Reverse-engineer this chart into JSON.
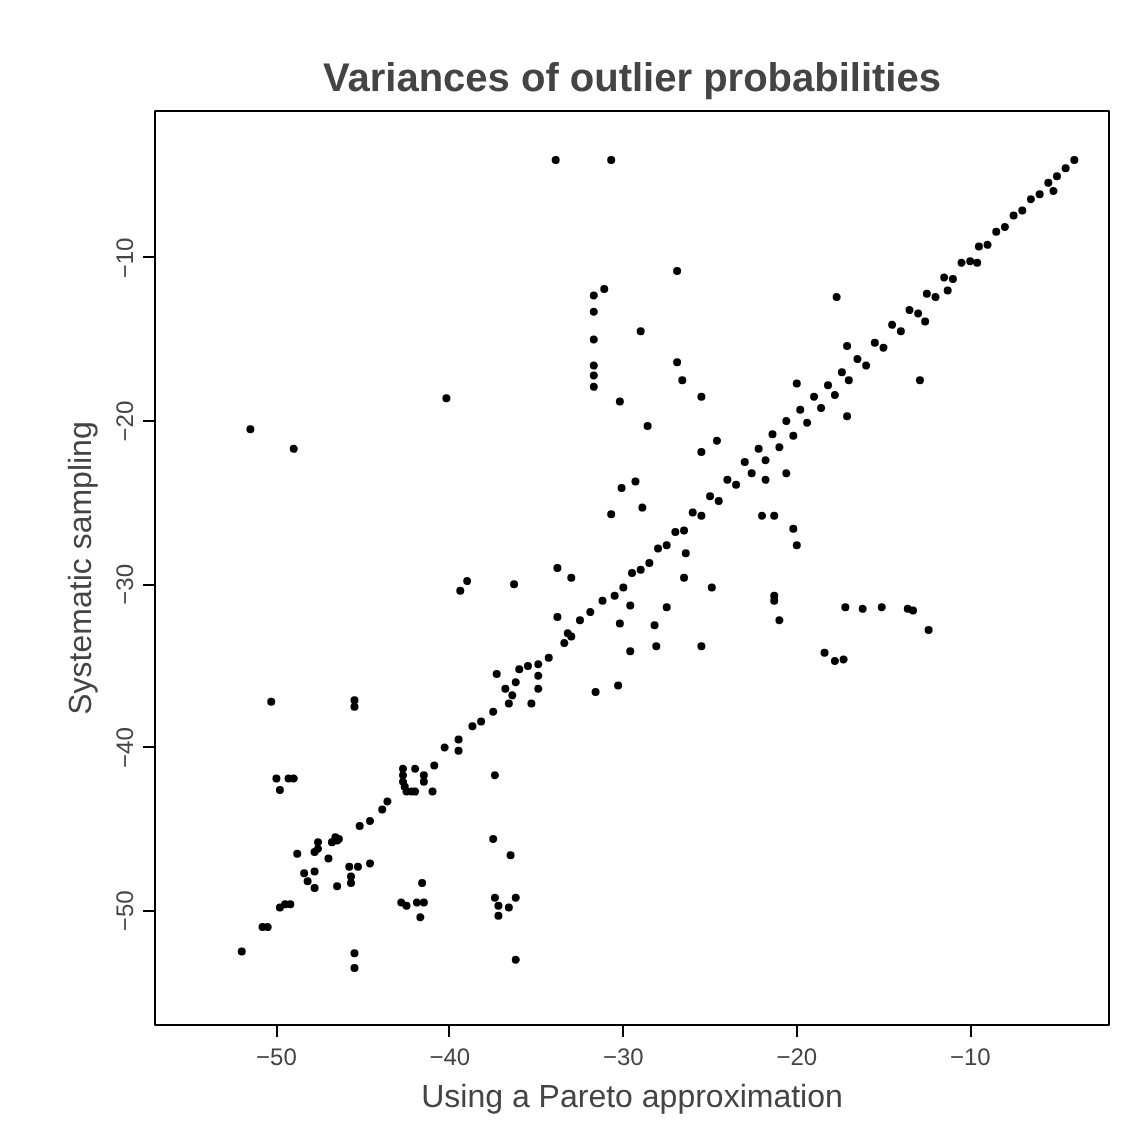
{
  "chart_data": {
    "type": "scatter",
    "title": "Variances of outlier probabilities",
    "xlabel": "Using a Pareto approximation",
    "ylabel": "Systematic sampling",
    "xlim": [
      -57,
      -2
    ],
    "ylim": [
      -57,
      -1
    ],
    "xticks": [
      -50,
      -40,
      -30,
      -20,
      -10
    ],
    "yticks": [
      -50,
      -40,
      -30,
      -20,
      -10
    ],
    "grid": false,
    "marker": "circle",
    "series": [
      {
        "color": "#000000",
        "x": [
          -33.9,
          -30.7,
          -51.5,
          -49.0,
          -40.2,
          -31.7,
          -31.7,
          -31.7,
          -31.7,
          -31.7,
          -31.7,
          -31.1,
          -30.7,
          -33.8,
          -33.0,
          -39.0,
          -36.3,
          -39.4,
          -26.9,
          -17.7,
          -29.0,
          -26.9,
          -26.6,
          -25.5,
          -30.2,
          -28.6,
          -12.9,
          -17.1,
          -30.1,
          -29.3,
          -28.9,
          -22.0,
          -21.3,
          -20.2,
          -20.0,
          -26.5,
          -24.9,
          -21.3,
          -26.4,
          -20.6,
          -21.8,
          -20.0,
          -17.1,
          -24.6,
          -25.5,
          -12.6,
          -5.2,
          -9.6,
          -11.3,
          -29.6,
          -27.5,
          -30.2,
          -28.2,
          -29.6,
          -28.1,
          -25.5,
          -30.3,
          -21.0,
          -21.3,
          -17.2,
          -16.2,
          -15.1,
          -13.6,
          -13.3,
          -12.4,
          -18.4,
          -17.8,
          -17.3,
          -50.3,
          -45.5,
          -45.5,
          -50.0,
          -49.8,
          -49.3,
          -49.0,
          -37.4,
          -37.5,
          -36.5,
          -37.4,
          -37.2,
          -37.2,
          -36.6,
          -36.2,
          -36.2,
          -45.5,
          -45.5,
          -42.8,
          -42.5,
          -41.9,
          -41.5,
          -41.7,
          -41.6,
          -31.6,
          -39.5,
          -48.4,
          -48.2,
          -47.8,
          -47.8,
          -46.5,
          -45.7,
          -45.7,
          -45.3,
          -44.6,
          -45.8,
          -52.0,
          -50.8,
          -50.5,
          -49.8,
          -49.5,
          -49.2,
          -48.8,
          -47.8,
          -47.6,
          -47.6,
          -46.8,
          -46.6,
          -46.5,
          -46.4,
          -45.2,
          -43.6,
          -42.6,
          -40.9,
          -39.5,
          -38.7,
          -37.5,
          -36.4,
          -34.9,
          -33.4,
          -31.9,
          -42.7,
          -42.7,
          -42.7,
          -42.5,
          -42.0,
          -42.0,
          -41.5,
          -41.5,
          -41.0,
          -42.2,
          -37.3,
          -36.8,
          -36.2,
          -36.0,
          -35.5,
          -34.9,
          -34.9,
          -36.6,
          -35.3,
          -33.8,
          -33.2,
          -47.0,
          -44.6,
          -43.9,
          -40.3,
          -38.2,
          -34.3,
          -33.0,
          -32.5,
          -31.2,
          -30.5,
          -30.0,
          -29.5,
          -29.0,
          -28.5,
          -28.0,
          -27.5,
          -27.0,
          -26.5,
          -26.0,
          -25.5,
          -25.0,
          -24.5,
          -24.0,
          -23.5,
          -23.0,
          -22.6,
          -22.2,
          -21.8,
          -21.4,
          -21.0,
          -20.6,
          -20.2,
          -19.8,
          -19.4,
          -19.0,
          -18.6,
          -18.2,
          -17.8,
          -17.4,
          -17.0,
          -16.5,
          -16.0,
          -15.5,
          -15.0,
          -14.5,
          -14.0,
          -13.5,
          -13.0,
          -12.5,
          -12.0,
          -11.5,
          -11.0,
          -10.5,
          -10.0,
          -9.5,
          -9.0,
          -8.5,
          -8.0,
          -7.5,
          -7.0,
          -6.5,
          -6.0,
          -5.5,
          -5.0,
          -4.5,
          -4.0
        ],
        "values": [
          -4.0,
          -4.0,
          -20.5,
          -21.7,
          -18.6,
          -12.3,
          -13.3,
          -15.0,
          -16.6,
          -17.2,
          -17.9,
          -11.9,
          -25.7,
          -29.0,
          -29.6,
          -29.8,
          -30.0,
          -30.4,
          -10.8,
          -12.4,
          -14.5,
          -16.4,
          -17.5,
          -18.5,
          -18.8,
          -20.3,
          -17.5,
          -19.7,
          -24.1,
          -23.7,
          -25.3,
          -25.8,
          -25.8,
          -26.6,
          -27.6,
          -29.6,
          -30.2,
          -30.7,
          -28.1,
          -23.2,
          -23.6,
          -17.7,
          -15.4,
          -21.2,
          -21.9,
          -13.9,
          -5.9,
          -10.3,
          -12.0,
          -31.3,
          -31.4,
          -32.4,
          -32.5,
          -34.1,
          -33.8,
          -33.8,
          -36.2,
          -32.2,
          -31.0,
          -31.4,
          -31.5,
          -31.4,
          -31.5,
          -31.6,
          -32.8,
          -34.2,
          -34.7,
          -34.6,
          -37.2,
          -37.1,
          -37.5,
          -41.9,
          -42.6,
          -41.9,
          -41.9,
          -41.7,
          -45.6,
          -46.6,
          -49.2,
          -49.7,
          -50.3,
          -49.8,
          -49.2,
          -53.0,
          -52.6,
          -53.5,
          -49.5,
          -49.7,
          -49.5,
          -49.5,
          -50.4,
          -48.3,
          -36.6,
          -40.2,
          -47.7,
          -48.2,
          -48.6,
          -47.6,
          -48.5,
          -47.9,
          -48.3,
          -47.3,
          -47.1,
          -47.3,
          -52.5,
          -51.0,
          -51.0,
          -49.8,
          -49.6,
          -49.6,
          -46.5,
          -46.4,
          -45.8,
          -46.2,
          -45.8,
          -45.5,
          -45.7,
          -45.6,
          -44.8,
          -43.3,
          -42.4,
          -41.1,
          -39.5,
          -38.7,
          -37.8,
          -36.8,
          -34.9,
          -33.6,
          -31.7,
          -41.3,
          -41.7,
          -42.1,
          -42.7,
          -41.3,
          -42.7,
          -41.7,
          -42.1,
          -42.7,
          -42.7,
          -35.5,
          -36.4,
          -36.0,
          -35.2,
          -35.0,
          -35.6,
          -36.4,
          -37.3,
          -37.3,
          -32.0,
          -33.0,
          -46.8,
          -44.5,
          -43.8,
          -40.0,
          -38.4,
          -34.5,
          -33.2,
          -32.2,
          -31.0,
          -30.7,
          -30.2,
          -29.3,
          -29.1,
          -28.7,
          -27.8,
          -27.6,
          -26.8,
          -26.7,
          -25.6,
          -25.8,
          -24.6,
          -24.9,
          -23.6,
          -23.9,
          -22.5,
          -23.2,
          -21.7,
          -22.4,
          -20.8,
          -21.6,
          -20.0,
          -20.9,
          -19.3,
          -20.1,
          -18.5,
          -19.2,
          -17.8,
          -18.4,
          -17.0,
          -17.5,
          -16.2,
          -16.6,
          -15.2,
          -15.5,
          -14.1,
          -14.5,
          -13.2,
          -13.4,
          -12.2,
          -12.4,
          -11.2,
          -11.3,
          -10.3,
          -10.2,
          -9.3,
          -9.2,
          -8.4,
          -8.1,
          -7.4,
          -7.1,
          -6.4,
          -6.1,
          -5.4,
          -5.0,
          -4.5,
          -4.0
        ]
      }
    ]
  }
}
